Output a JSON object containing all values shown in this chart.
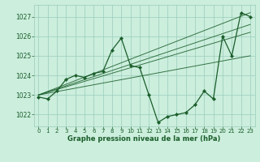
{
  "title": "Graphe pression niveau de la mer (hPa)",
  "bg_color": "#cceedd",
  "grid_color": "#99ccbb",
  "line_color": "#1a5e2a",
  "text_color": "#1a5e2a",
  "ylim": [
    1021.4,
    1027.6
  ],
  "xlim": [
    -0.5,
    23.5
  ],
  "yticks": [
    1022,
    1023,
    1024,
    1025,
    1026,
    1027
  ],
  "xticks": [
    0,
    1,
    2,
    3,
    4,
    5,
    6,
    7,
    8,
    9,
    10,
    11,
    12,
    13,
    14,
    15,
    16,
    17,
    18,
    19,
    20,
    21,
    22,
    23
  ],
  "hours": [
    0,
    1,
    2,
    3,
    4,
    5,
    6,
    7,
    8,
    9,
    10,
    11,
    12,
    13,
    14,
    15,
    16,
    17,
    18,
    19,
    20,
    21,
    22,
    23
  ],
  "pressure": [
    1022.9,
    1022.8,
    1023.2,
    1023.8,
    1024.0,
    1023.9,
    1024.1,
    1024.2,
    1025.3,
    1025.9,
    1024.5,
    1024.4,
    1023.0,
    1021.6,
    1021.9,
    1022.0,
    1022.1,
    1022.5,
    1023.2,
    1022.8,
    1026.0,
    1025.0,
    1027.2,
    1027.0
  ],
  "trend_lines": [
    {
      "x0": 0,
      "y0": 1023.0,
      "x1": 23,
      "y1": 1027.2
    },
    {
      "x0": 0,
      "y0": 1023.0,
      "x1": 23,
      "y1": 1026.6
    },
    {
      "x0": 0,
      "y0": 1023.0,
      "x1": 23,
      "y1": 1026.2
    },
    {
      "x0": 0,
      "y0": 1023.0,
      "x1": 23,
      "y1": 1025.0
    }
  ]
}
